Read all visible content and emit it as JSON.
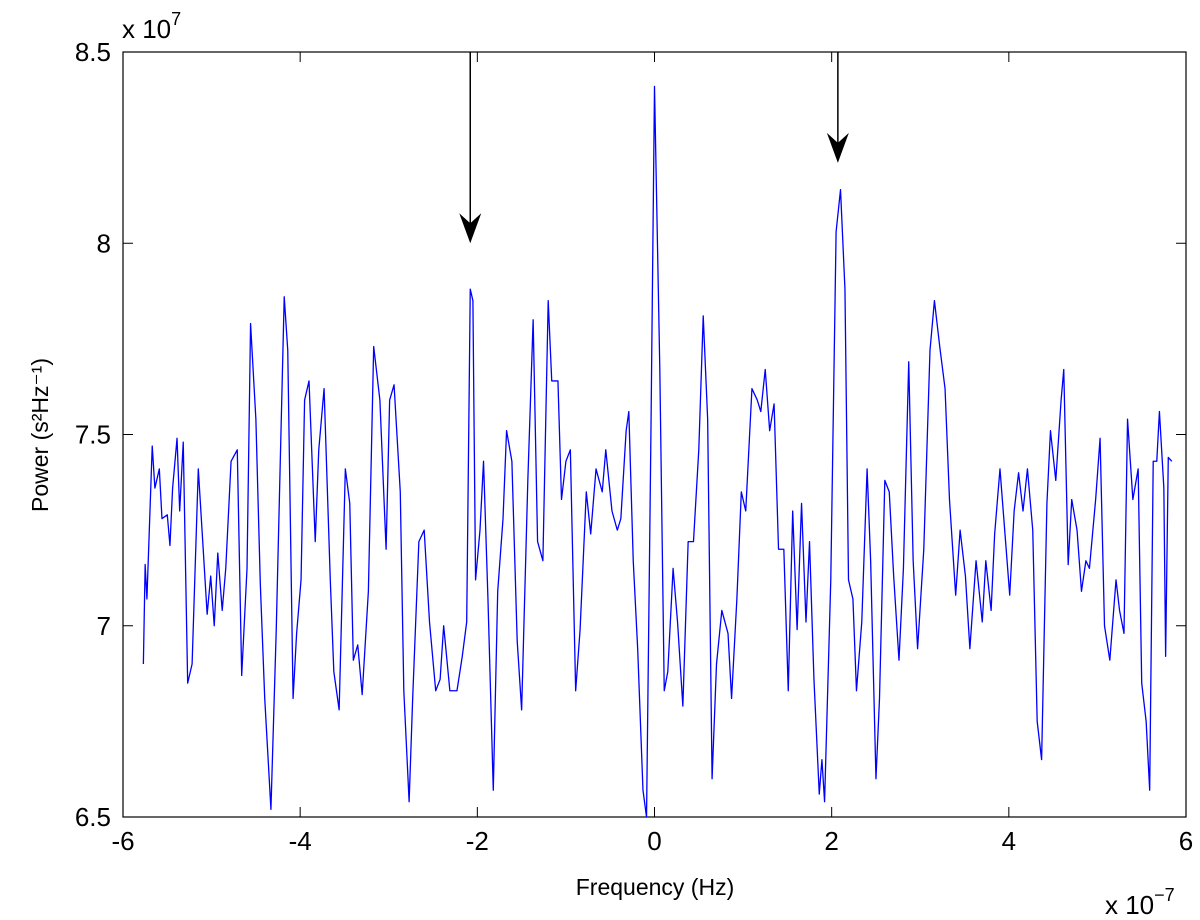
{
  "chart_data": {
    "type": "line",
    "xlabel": "Frequency (Hz)",
    "ylabel": "Power (s²Hz⁻¹)",
    "x_multiplier": {
      "base": "x 10",
      "power": "−7"
    },
    "y_multiplier": {
      "base": "x 10",
      "power": "7"
    },
    "color": "#0000ff",
    "xlim": [
      -6,
      6
    ],
    "xticks": [
      -6,
      -4,
      -2,
      0,
      2,
      4,
      6
    ],
    "ylim": [
      6.5,
      8.5
    ],
    "yticks": [
      6.5,
      7,
      7.5,
      8,
      8.5
    ],
    "arrows": [
      {
        "x": -2.08,
        "y": [
          8.5,
          8.0
        ]
      },
      {
        "x": 2.07,
        "y": [
          8.5,
          8.21
        ]
      }
    ],
    "x": [
      -5.77,
      -5.75,
      -5.73,
      -5.67,
      -5.64,
      -5.59,
      -5.56,
      -5.5,
      -5.47,
      -5.44,
      -5.39,
      -5.36,
      -5.32,
      -5.27,
      -5.22,
      -5.15,
      -5.1,
      -5.05,
      -5.01,
      -4.97,
      -4.93,
      -4.88,
      -4.84,
      -4.78,
      -4.71,
      -4.66,
      -4.6,
      -4.56,
      -4.5,
      -4.45,
      -4.4,
      -4.33,
      -4.27,
      -4.18,
      -4.14,
      -4.08,
      -4.04,
      -3.99,
      -3.95,
      -3.9,
      -3.83,
      -3.79,
      -3.73,
      -3.66,
      -3.62,
      -3.56,
      -3.49,
      -3.44,
      -3.4,
      -3.35,
      -3.3,
      -3.23,
      -3.17,
      -3.1,
      -3.03,
      -2.99,
      -2.94,
      -2.87,
      -2.83,
      -2.77,
      -2.73,
      -2.66,
      -2.6,
      -2.54,
      -2.47,
      -2.42,
      -2.38,
      -2.31,
      -2.23,
      -2.17,
      -2.12,
      -2.08,
      -2.05,
      -2.02,
      -1.97,
      -1.93,
      -1.88,
      -1.82,
      -1.77,
      -1.71,
      -1.67,
      -1.61,
      -1.55,
      -1.5,
      -1.43,
      -1.37,
      -1.32,
      -1.26,
      -1.2,
      -1.16,
      -1.09,
      -1.05,
      -1.0,
      -0.95,
      -0.89,
      -0.84,
      -0.77,
      -0.72,
      -0.66,
      -0.59,
      -0.55,
      -0.48,
      -0.42,
      -0.38,
      -0.32,
      -0.29,
      -0.24,
      -0.19,
      -0.13,
      -0.09,
      -0.04,
      0.0,
      0.06,
      0.11,
      0.15,
      0.21,
      0.26,
      0.32,
      0.38,
      0.44,
      0.5,
      0.55,
      0.6,
      0.65,
      0.7,
      0.76,
      0.83,
      0.87,
      0.93,
      0.98,
      1.03,
      1.1,
      1.16,
      1.2,
      1.25,
      1.3,
      1.35,
      1.4,
      1.46,
      1.51,
      1.56,
      1.61,
      1.66,
      1.71,
      1.75,
      1.8,
      1.86,
      1.89,
      1.92,
      1.99,
      2.05,
      2.1,
      2.15,
      2.19,
      2.24,
      2.28,
      2.34,
      2.4,
      2.44,
      2.5,
      2.54,
      2.6,
      2.65,
      2.7,
      2.76,
      2.81,
      2.87,
      2.92,
      2.97,
      3.04,
      3.11,
      3.16,
      3.22,
      3.28,
      3.33,
      3.4,
      3.45,
      3.51,
      3.56,
      3.63,
      3.7,
      3.74,
      3.8,
      3.84,
      3.9,
      3.95,
      4.01,
      4.06,
      4.11,
      4.16,
      4.21,
      4.27,
      4.32,
      4.37,
      4.43,
      4.47,
      4.53,
      4.59,
      4.62,
      4.67,
      4.71,
      4.77,
      4.82,
      4.87,
      4.91,
      4.98,
      5.03,
      5.08,
      5.14,
      5.21,
      5.25,
      5.3,
      5.34,
      5.4,
      5.46,
      5.5,
      5.55,
      5.59,
      5.63,
      5.67,
      5.7,
      5.75,
      5.77,
      5.8,
      5.84
    ],
    "values": [
      6.9,
      7.16,
      7.07,
      7.47,
      7.36,
      7.41,
      7.28,
      7.29,
      7.21,
      7.36,
      7.49,
      7.3,
      7.48,
      6.85,
      6.9,
      7.41,
      7.22,
      7.03,
      7.13,
      7.0,
      7.19,
      7.04,
      7.15,
      7.43,
      7.46,
      6.87,
      7.15,
      7.79,
      7.54,
      7.11,
      6.81,
      6.52,
      6.99,
      7.86,
      7.72,
      6.81,
      6.98,
      7.12,
      7.59,
      7.64,
      7.22,
      7.46,
      7.62,
      7.12,
      6.88,
      6.78,
      7.41,
      7.32,
      6.91,
      6.95,
      6.82,
      7.09,
      7.73,
      7.59,
      7.2,
      7.59,
      7.63,
      7.35,
      6.83,
      6.54,
      6.81,
      7.22,
      7.25,
      7.01,
      6.83,
      6.86,
      7.0,
      6.83,
      6.83,
      6.92,
      7.01,
      7.88,
      7.85,
      7.12,
      7.25,
      7.43,
      7.07,
      6.57,
      7.09,
      7.28,
      7.51,
      7.43,
      6.96,
      6.78,
      7.38,
      7.8,
      7.22,
      7.17,
      7.85,
      7.64,
      7.64,
      7.33,
      7.43,
      7.46,
      6.83,
      6.99,
      7.35,
      7.24,
      7.41,
      7.35,
      7.46,
      7.3,
      7.25,
      7.28,
      7.51,
      7.56,
      7.17,
      6.94,
      6.57,
      6.5,
      7.51,
      8.41,
      7.67,
      6.83,
      6.88,
      7.15,
      7.01,
      6.79,
      7.22,
      7.22,
      7.46,
      7.81,
      7.54,
      6.6,
      6.9,
      7.04,
      6.98,
      6.81,
      7.07,
      7.35,
      7.3,
      7.62,
      7.59,
      7.56,
      7.67,
      7.51,
      7.58,
      7.2,
      7.2,
      6.83,
      7.3,
      6.99,
      7.32,
      7.01,
      7.22,
      6.86,
      6.56,
      6.65,
      6.54,
      7.12,
      8.03,
      8.14,
      7.88,
      7.12,
      7.07,
      6.83,
      7.01,
      7.41,
      7.17,
      6.6,
      6.81,
      7.38,
      7.35,
      7.13,
      6.91,
      7.15,
      7.69,
      7.17,
      6.94,
      7.2,
      7.72,
      7.85,
      7.73,
      7.62,
      7.33,
      7.08,
      7.25,
      7.13,
      6.94,
      7.17,
      7.01,
      7.17,
      7.04,
      7.24,
      7.41,
      7.26,
      7.08,
      7.3,
      7.4,
      7.3,
      7.41,
      7.25,
      6.75,
      6.65,
      7.32,
      7.51,
      7.38,
      7.59,
      7.67,
      7.16,
      7.33,
      7.25,
      7.09,
      7.17,
      7.15,
      7.33,
      7.49,
      7.0,
      6.91,
      7.12,
      7.04,
      6.98,
      7.54,
      7.33,
      7.41,
      6.85,
      6.75,
      6.57,
      7.43,
      7.43,
      7.56,
      7.36,
      6.92,
      7.44,
      7.43
    ]
  }
}
